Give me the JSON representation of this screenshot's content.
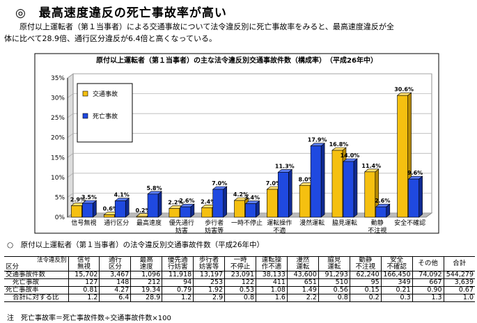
{
  "header": {
    "title": "◎　最高速度違反の死亡事故率が高い",
    "paragraph_line1": "原付以上運転者（第１当事者）による交通事故について法令違反別に死亡事故率をみると、最高速度違反が全",
    "paragraph_line2": "体に比べて28.9倍、通行区分違反が6.4倍と高くなっている。"
  },
  "chart_data": {
    "type": "bar",
    "title": "原付以上運転者（第１当事者）の主な法令違反別交通事故件数（構成率）　（平成26年中）",
    "categories": [
      "信号無視",
      "通行区分",
      "最高速度",
      "優先通行妨害",
      "歩行者妨害等",
      "一時不停止",
      "運転操作不適",
      "漫然運転",
      "脇見運転",
      "動静不注視",
      "安全不確認"
    ],
    "category_lines": [
      [
        "信号無視"
      ],
      [
        "通行区分"
      ],
      [
        "最高速度"
      ],
      [
        "優先通行",
        "妨害"
      ],
      [
        "歩行者",
        "妨害等"
      ],
      [
        "一時不停止"
      ],
      [
        "運転操作",
        "不適"
      ],
      [
        "漫然運転"
      ],
      [
        "脇見運転"
      ],
      [
        "動静",
        "不注視"
      ],
      [
        "安全不確認"
      ]
    ],
    "series": [
      {
        "name": "交通事故",
        "color": "#F5C010",
        "values": [
          2.9,
          0.6,
          0.2,
          2.2,
          2.4,
          4.2,
          7.0,
          8.0,
          16.8,
          11.4,
          30.6
        ],
        "labels": [
          "2.9%",
          "0.6%",
          "0.2%",
          "2.2%",
          "2.4%",
          "4.2%",
          "7.0%",
          "8.0%",
          "16.8%",
          "11.4%",
          "30.6%"
        ]
      },
      {
        "name": "死亡事故",
        "color": "#1F49E0",
        "values": [
          3.5,
          4.1,
          5.8,
          2.6,
          7.0,
          3.4,
          11.3,
          17.9,
          14.0,
          2.6,
          9.6
        ],
        "labels": [
          "3.5%",
          "4.1%",
          "5.8%",
          "2.6%",
          "7.0%",
          "3.4%",
          "11.3%",
          "17.9%",
          "14.0%",
          "2.6%",
          "9.6%"
        ]
      }
    ],
    "yticks": [
      "0%",
      "5%",
      "10%",
      "15%",
      "20%",
      "25%",
      "30%",
      "35%"
    ],
    "ylim": [
      0,
      35
    ],
    "grid": true,
    "legend_position": "top-left"
  },
  "table": {
    "caption": "○　原付以上運転者（第１当事者）の法令違反別交通事故件数（平成26年中）",
    "corner_top": "法令違反別",
    "corner_bottom": "区分",
    "columns": [
      [
        "信号",
        "無視"
      ],
      [
        "通行",
        "区分"
      ],
      [
        "最高",
        "速度"
      ],
      [
        "優先通",
        "行妨害"
      ],
      [
        "歩行者",
        "妨害等"
      ],
      [
        "一時",
        "不停止"
      ],
      [
        "運転操",
        "作不適"
      ],
      [
        "漫然",
        "運転"
      ],
      [
        "脇見",
        "運転"
      ],
      [
        "動静",
        "不注視"
      ],
      [
        "安全",
        "不確認"
      ],
      [
        "その他"
      ],
      [
        "合計"
      ]
    ],
    "rows": [
      {
        "label": "交通事故件数",
        "sub": false,
        "sep": false,
        "values": [
          "15,702",
          "3,467",
          "1,096",
          "11,918",
          "13,197",
          "23,091",
          "38,133",
          "43,600",
          "91,293",
          "62,240",
          "166,450",
          "74,092",
          "544,279"
        ]
      },
      {
        "label": "死亡事故",
        "sub": true,
        "sep": false,
        "values": [
          "127",
          "148",
          "212",
          "94",
          "253",
          "122",
          "411",
          "651",
          "510",
          "95",
          "349",
          "667",
          "3,639"
        ]
      },
      {
        "label": "死亡事故率",
        "sub": false,
        "sep": true,
        "values": [
          "0.81",
          "4.27",
          "19.34",
          "0.79",
          "1.92",
          "0.53",
          "1.08",
          "1.49",
          "0.56",
          "0.15",
          "0.21",
          "0.90",
          "0.67"
        ]
      },
      {
        "label": "合計に対する比",
        "sub": true,
        "sep": false,
        "values": [
          "1.2",
          "6.4",
          "28.9",
          "1.2",
          "2.9",
          "0.8",
          "1.6",
          "2.2",
          "0.8",
          "0.2",
          "0.3",
          "1.3",
          "1.0"
        ]
      }
    ]
  },
  "note": "注　死亡事故率＝死亡事故件数÷交通事故件数×100"
}
